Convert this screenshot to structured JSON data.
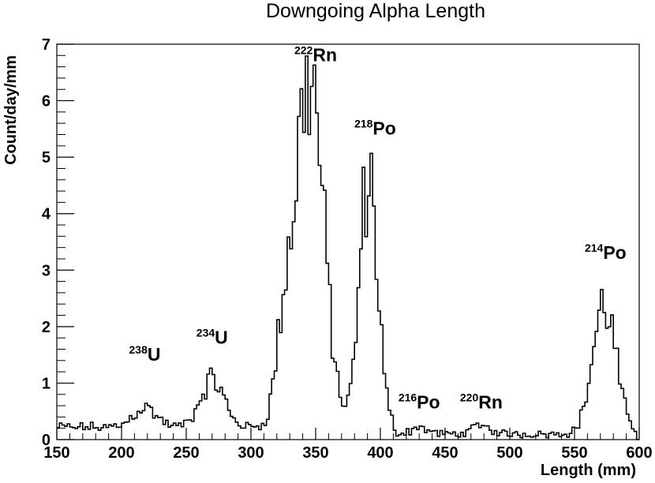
{
  "chart_data": {
    "type": "histogram",
    "title": "Downgoing Alpha Length",
    "xlabel": "Length (mm)",
    "ylabel": "Count/day/mm",
    "xlim": [
      150,
      600
    ],
    "ylim": [
      0,
      7
    ],
    "x_ticks": [
      "150",
      "200",
      "250",
      "300",
      "350",
      "400",
      "450",
      "500",
      "550",
      "600"
    ],
    "y_ticks": [
      "0",
      "1",
      "2",
      "3",
      "4",
      "5",
      "6",
      "7"
    ],
    "grid": false,
    "legend": "none",
    "bin_width_mm": 2,
    "background_level": 0.22,
    "peaks": [
      {
        "mass": "238",
        "element": "U",
        "center": 218,
        "sigma": 9,
        "height": 0.35,
        "label_x": 218,
        "label_y": 1.4
      },
      {
        "mass": "234",
        "element": "U",
        "center": 270,
        "sigma": 9,
        "height": 0.85,
        "label_x": 270,
        "label_y": 1.7
      },
      {
        "mass": "222",
        "element": "Rn",
        "center": 345,
        "sigma": 11,
        "height": 6.3,
        "label_x": 350,
        "label_y": 6.7
      },
      {
        "mass": "218",
        "element": "Po",
        "center": 391,
        "sigma": 7,
        "height": 4.55,
        "label_x": 396,
        "label_y": 5.4
      },
      {
        "mass": "216",
        "element": "Po",
        "center": 430,
        "sigma": 6,
        "height": 0.12,
        "label_x": 430,
        "label_y": 0.55
      },
      {
        "mass": "220",
        "element": "Rn",
        "center": 478,
        "sigma": 7,
        "height": 0.14,
        "label_x": 478,
        "label_y": 0.55
      },
      {
        "mass": "214",
        "element": "Po",
        "center": 573,
        "sigma": 9,
        "height": 2.3,
        "label_x": 574,
        "label_y": 3.2
      }
    ],
    "extra_shoulders": [
      {
        "center": 325,
        "sigma": 6,
        "height": 1.3
      }
    ],
    "line_color": "#000000"
  }
}
